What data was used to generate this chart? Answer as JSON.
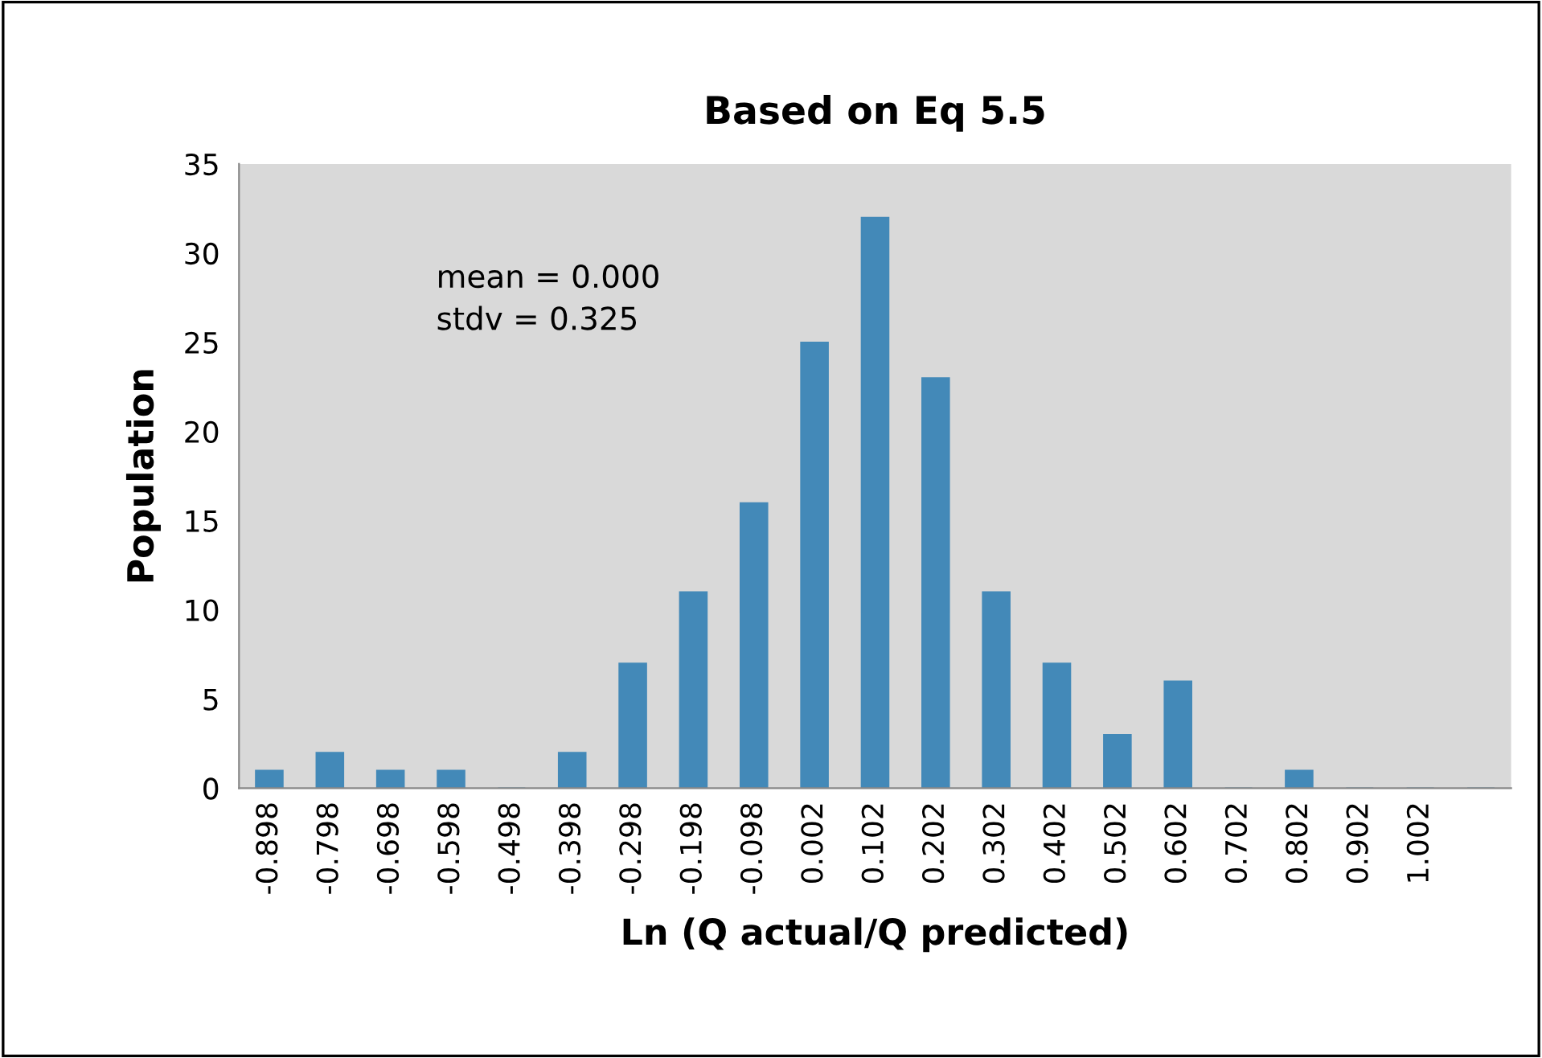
{
  "chart_data": {
    "type": "bar",
    "title": "Based on Eq 5.5",
    "xlabel": "Ln (Q actual/Q predicted)",
    "ylabel": "Population",
    "categories": [
      "-0.898",
      "-0.798",
      "-0.698",
      "-0.598",
      "-0.498",
      "-0.398",
      "-0.298",
      "-0.198",
      "-0.098",
      "0.002",
      "0.102",
      "0.202",
      "0.302",
      "0.402",
      "0.502",
      "0.602",
      "0.702",
      "0.802",
      "0.902",
      "1.002",
      null
    ],
    "values": [
      1,
      2,
      1,
      1,
      0,
      2,
      7,
      11,
      16,
      25,
      32,
      23,
      11,
      7,
      3,
      6,
      0,
      1,
      0,
      0,
      0
    ],
    "color": "#4389b8",
    "ylim": [
      0,
      35
    ],
    "yticks": [
      0,
      5,
      10,
      15,
      20,
      25,
      30,
      35
    ],
    "grid": false,
    "legend": false,
    "annotations": [
      "mean = 0.000\nstdv = 0.325"
    ]
  }
}
